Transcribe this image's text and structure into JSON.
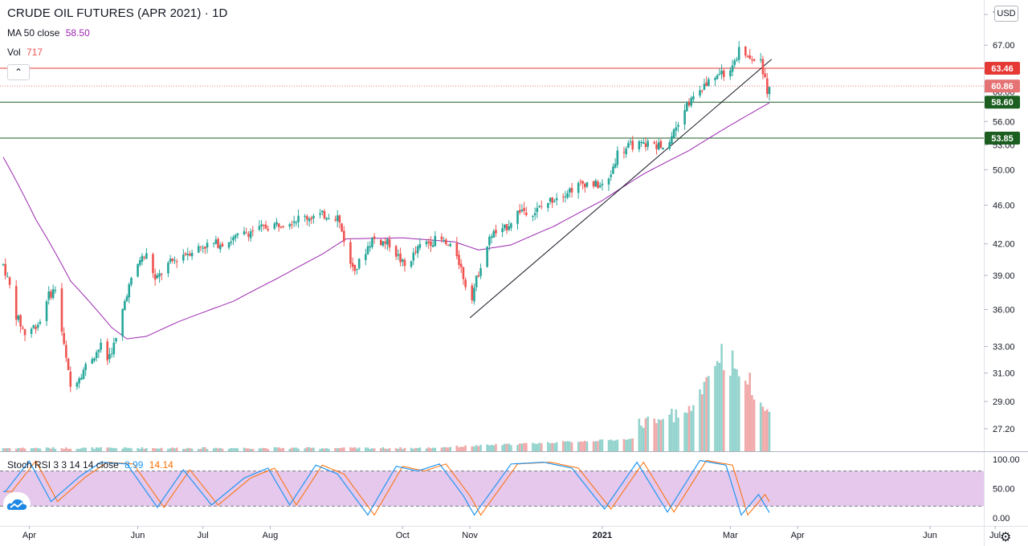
{
  "header": {
    "title": "CRUDE OIL FUTURES (APR 2021) · 1D",
    "ma_label": "MA 50 close",
    "ma_value": "58.50",
    "vol_label": "Vol",
    "vol_value": "717",
    "currency": "USD"
  },
  "stoch": {
    "label": "Stoch RSI 3 3 14 14 close",
    "k_value": "8.99",
    "d_value": "14.14",
    "axis_labels": [
      "100.00",
      "50.00",
      "0.00"
    ],
    "upper_band": 80,
    "lower_band": 20
  },
  "colors": {
    "up": "#26a69a",
    "down": "#ef5350",
    "ma": "#9c27b0",
    "stoch_k": "#2196f3",
    "stoch_d": "#ff6d00",
    "stoch_band": "#e1bee7",
    "resistance_red": "#e53935",
    "support_green": "#1b5e20"
  },
  "chart_data": {
    "type": "candlestick",
    "title": "CRUDE OIL FUTURES (APR 2021) · 1D",
    "y_scale": "log",
    "ylim": [
      25.8,
      74.5
    ],
    "price_ticks": [
      "72.00",
      "67.00",
      "63.00",
      "60.00",
      "56.00",
      "53.00",
      "50.00",
      "46.00",
      "42.00",
      "39.00",
      "36.00",
      "33.00",
      "31.00",
      "29.00",
      "27.20"
    ],
    "x_labels": [
      "Apr",
      "Jun",
      "Jul",
      "Aug",
      "Oct",
      "Nov",
      "2021",
      "Mar",
      "Apr",
      "Jun",
      "Jul"
    ],
    "price_path": [
      [
        "2020-03-31",
        40
      ],
      [
        "2020-04-03",
        38
      ],
      [
        "2020-04-06",
        35.5
      ],
      [
        "2020-04-10",
        34
      ],
      [
        "2020-04-17",
        35
      ],
      [
        "2020-04-20",
        37
      ],
      [
        "2020-04-24",
        37.8
      ],
      [
        "2020-04-28",
        33
      ],
      [
        "2020-05-01",
        30
      ],
      [
        "2020-05-06",
        31
      ],
      [
        "2020-05-10",
        32
      ],
      [
        "2020-05-15",
        33
      ],
      [
        "2020-05-18",
        32
      ],
      [
        "2020-05-22",
        33.5
      ],
      [
        "2020-05-27",
        37.5
      ],
      [
        "2020-06-02",
        40.5
      ],
      [
        "2020-06-06",
        41
      ],
      [
        "2020-06-09",
        38.5
      ],
      [
        "2020-06-15",
        40
      ],
      [
        "2020-06-22",
        41
      ],
      [
        "2020-07-01",
        41.8
      ],
      [
        "2020-07-12",
        42.2
      ],
      [
        "2020-07-22",
        43.2
      ],
      [
        "2020-08-04",
        44
      ],
      [
        "2020-08-14",
        44.6
      ],
      [
        "2020-08-28",
        45
      ],
      [
        "2020-09-01",
        44.8
      ],
      [
        "2020-09-04",
        42.5
      ],
      [
        "2020-09-06",
        40
      ],
      [
        "2020-09-10",
        39.8
      ],
      [
        "2020-09-17",
        42.5
      ],
      [
        "2020-09-25",
        42
      ],
      [
        "2020-10-02",
        39.8
      ],
      [
        "2020-10-10",
        42
      ],
      [
        "2020-10-18",
        42.5
      ],
      [
        "2020-10-26",
        41
      ],
      [
        "2020-10-31",
        37.5
      ],
      [
        "2020-11-01",
        36.5
      ],
      [
        "2020-11-06",
        40
      ],
      [
        "2020-11-11",
        43
      ],
      [
        "2020-11-16",
        43.2
      ],
      [
        "2020-11-24",
        45.5
      ],
      [
        "2020-12-01",
        45.3
      ],
      [
        "2020-12-11",
        47
      ],
      [
        "2020-12-24",
        48.5
      ],
      [
        "2021-01-03",
        48
      ],
      [
        "2021-01-08",
        52
      ],
      [
        "2021-01-15",
        53
      ],
      [
        "2021-01-31",
        53
      ],
      [
        "2021-02-08",
        58
      ],
      [
        "2021-02-18",
        61
      ],
      [
        "2021-02-24",
        63
      ],
      [
        "2021-02-27",
        62
      ],
      [
        "2021-03-05",
        66
      ],
      [
        "2021-03-10",
        65
      ],
      [
        "2021-03-15",
        64.5
      ],
      [
        "2021-03-17",
        62
      ],
      [
        "2021-03-18",
        59.5
      ],
      [
        "2021-03-19",
        60.9
      ]
    ],
    "ma50_path": [
      [
        "2020-03-31",
        51.5
      ],
      [
        "2020-04-15",
        44.5
      ],
      [
        "2020-05-01",
        38.5
      ],
      [
        "2020-05-20",
        34.5
      ],
      [
        "2020-05-27",
        33.6
      ],
      [
        "2020-06-05",
        33.8
      ],
      [
        "2020-06-20",
        35
      ],
      [
        "2020-07-15",
        36.7
      ],
      [
        "2020-08-05",
        38.8
      ],
      [
        "2020-08-25",
        41
      ],
      [
        "2020-09-05",
        42.5
      ],
      [
        "2020-10-01",
        42.6
      ],
      [
        "2020-10-25",
        42.2
      ],
      [
        "2020-11-05",
        41.4
      ],
      [
        "2020-11-20",
        41.9
      ],
      [
        "2020-12-10",
        43.8
      ],
      [
        "2021-01-01",
        46.5
      ],
      [
        "2021-01-20",
        49.5
      ],
      [
        "2021-02-10",
        52.3
      ],
      [
        "2021-03-01",
        55.5
      ],
      [
        "2021-03-19",
        58.5
      ]
    ],
    "volume_peaks": [
      [
        "2021-02-20",
        26000
      ],
      [
        "2021-02-27",
        29000
      ],
      [
        "2021-03-04",
        24000
      ],
      [
        "2021-03-10",
        20000
      ]
    ],
    "levels": [
      {
        "price": 63.46,
        "label": "63.46",
        "color": "#e53935",
        "style": "solid"
      },
      {
        "price": 60.86,
        "label": "60.86",
        "color": "#e57373",
        "style": "dotted"
      },
      {
        "price": 58.6,
        "label": "58.60",
        "color": "#1b5e20",
        "style": "solid"
      },
      {
        "price": 53.85,
        "label": "53.85",
        "color": "#1b5e20",
        "style": "solid"
      }
    ],
    "trendline": [
      [
        "2020-11-01",
        35.3
      ],
      [
        "2021-03-20",
        64.8
      ]
    ],
    "stoch_path": [
      [
        "2020-04-01",
        45
      ],
      [
        "2020-04-12",
        97
      ],
      [
        "2020-04-22",
        28
      ],
      [
        "2020-05-05",
        70
      ],
      [
        "2020-05-15",
        95
      ],
      [
        "2020-05-27",
        92
      ],
      [
        "2020-06-10",
        18
      ],
      [
        "2020-06-22",
        82
      ],
      [
        "2020-07-05",
        22
      ],
      [
        "2020-07-20",
        68
      ],
      [
        "2020-07-31",
        85
      ],
      [
        "2020-08-10",
        22
      ],
      [
        "2020-08-22",
        90
      ],
      [
        "2020-09-01",
        75
      ],
      [
        "2020-09-15",
        5
      ],
      [
        "2020-09-28",
        88
      ],
      [
        "2020-10-08",
        80
      ],
      [
        "2020-10-18",
        92
      ],
      [
        "2020-10-29",
        38
      ],
      [
        "2020-11-03",
        5
      ],
      [
        "2020-11-20",
        92
      ],
      [
        "2020-12-05",
        95
      ],
      [
        "2020-12-18",
        85
      ],
      [
        "2021-01-02",
        15
      ],
      [
        "2021-01-17",
        95
      ],
      [
        "2021-01-31",
        10
      ],
      [
        "2021-02-15",
        98
      ],
      [
        "2021-02-27",
        90
      ],
      [
        "2021-03-06",
        5
      ],
      [
        "2021-03-14",
        40
      ],
      [
        "2021-03-19",
        9
      ]
    ]
  }
}
